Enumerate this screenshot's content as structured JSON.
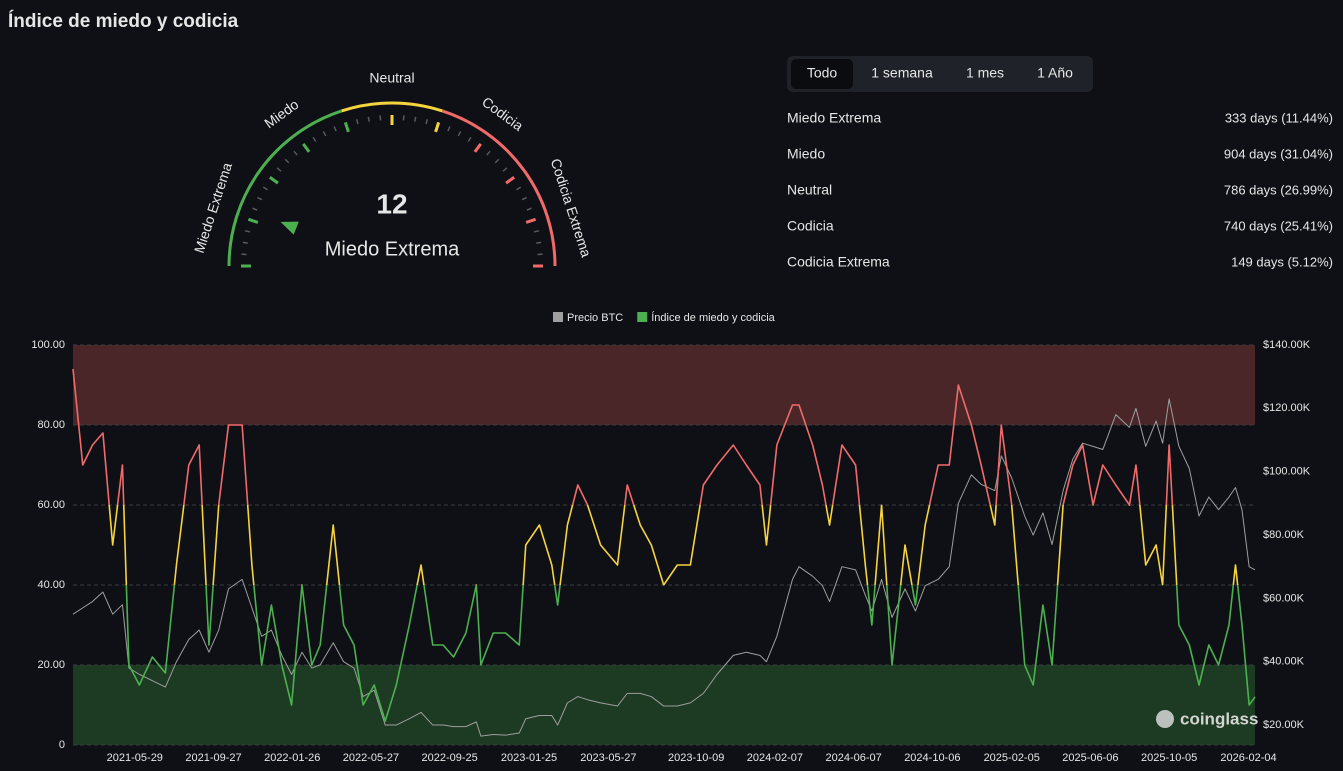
{
  "header": {
    "title": "Índice de miedo y codicia"
  },
  "gauge": {
    "value": 12,
    "label": "Miedo Extrema",
    "min": 0,
    "max": 100,
    "zones": [
      "Miedo Extrema",
      "Miedo",
      "Neutral",
      "Codicia",
      "Codicia Extrema"
    ],
    "segments": [
      {
        "to": 40,
        "color": "#4caf50"
      },
      {
        "to": 60,
        "color": "#f5d33f"
      },
      {
        "to": 100,
        "color": "#f06a6a"
      }
    ]
  },
  "tabs": [
    "Todo",
    "1 semana",
    "1 mes",
    "1 Año"
  ],
  "active_tab": 0,
  "stats": [
    {
      "name": "Miedo Extrema",
      "value": "333 days (11.44%)"
    },
    {
      "name": "Miedo",
      "value": "904 days (31.04%)"
    },
    {
      "name": "Neutral",
      "value": "786 days (26.99%)"
    },
    {
      "name": "Codicia",
      "value": "740 days (25.41%)"
    },
    {
      "name": "Codicia Extrema",
      "value": "149 days (5.12%)"
    }
  ],
  "watermark": "coinglass",
  "chart_data": {
    "type": "line",
    "legend": "top",
    "grid": true,
    "x": [
      "2021-02-23",
      "2021-03-10",
      "2021-03-25",
      "2021-04-10",
      "2021-04-25",
      "2021-05-10",
      "2021-05-20",
      "2021-06-05",
      "2021-06-25",
      "2021-07-15",
      "2021-08-01",
      "2021-08-20",
      "2021-09-05",
      "2021-09-20",
      "2021-10-05",
      "2021-10-20",
      "2021-11-10",
      "2021-11-25",
      "2021-12-10",
      "2021-12-25",
      "2022-01-10",
      "2022-01-25",
      "2022-02-10",
      "2022-02-25",
      "2022-03-10",
      "2022-03-30",
      "2022-04-15",
      "2022-05-01",
      "2022-05-15",
      "2022-06-01",
      "2022-06-18",
      "2022-07-05",
      "2022-07-25",
      "2022-08-12",
      "2022-08-30",
      "2022-09-15",
      "2022-10-01",
      "2022-10-20",
      "2022-11-05",
      "2022-11-12",
      "2022-12-01",
      "2022-12-20",
      "2023-01-10",
      "2023-01-20",
      "2023-02-10",
      "2023-03-01",
      "2023-03-10",
      "2023-03-25",
      "2023-04-10",
      "2023-04-25",
      "2023-05-15",
      "2023-06-10",
      "2023-06-25",
      "2023-07-15",
      "2023-08-01",
      "2023-08-20",
      "2023-09-10",
      "2023-09-30",
      "2023-10-20",
      "2023-11-10",
      "2023-12-05",
      "2023-12-25",
      "2024-01-15",
      "2024-01-25",
      "2024-02-10",
      "2024-03-05",
      "2024-03-15",
      "2024-04-05",
      "2024-04-20",
      "2024-05-01",
      "2024-05-20",
      "2024-06-10",
      "2024-06-25",
      "2024-07-05",
      "2024-07-20",
      "2024-08-05",
      "2024-08-25",
      "2024-09-10",
      "2024-09-25",
      "2024-10-15",
      "2024-11-01",
      "2024-11-15",
      "2024-12-05",
      "2024-12-20",
      "2025-01-10",
      "2025-01-20",
      "2025-02-05",
      "2025-02-25",
      "2025-03-10",
      "2025-03-25",
      "2025-04-08",
      "2025-04-25",
      "2025-05-10",
      "2025-05-25",
      "2025-06-10",
      "2025-06-25",
      "2025-07-15",
      "2025-08-05",
      "2025-08-15",
      "2025-08-30",
      "2025-09-15",
      "2025-09-25",
      "2025-10-05",
      "2025-10-20",
      "2025-11-05",
      "2025-11-20",
      "2025-12-05",
      "2025-12-20",
      "2026-01-05",
      "2026-01-15",
      "2026-01-25",
      "2026-02-05",
      "2026-02-14"
    ],
    "xlim": [
      "2021-02-23",
      "2026-02-14"
    ],
    "xticks": [
      "2021-05-29",
      "2021-09-27",
      "2022-01-26",
      "2022-05-27",
      "2022-09-25",
      "2023-01-25",
      "2023-05-27",
      "2023-10-09",
      "2024-02-07",
      "2024-06-07",
      "2024-10-06",
      "2025-02-05",
      "2025-06-06",
      "2025-10-05",
      "2026-02-04"
    ],
    "ylim": [
      0,
      100
    ],
    "yticks": [
      0,
      {
        "value": 20,
        "label": "20.00"
      },
      {
        "value": 40,
        "label": "40.00"
      },
      {
        "value": 60,
        "label": "60.00"
      },
      {
        "value": 80,
        "label": "80.00"
      },
      {
        "value": 100,
        "label": "100.00"
      }
    ],
    "y2lim": [
      13700,
      140000
    ],
    "y2ticks": [
      {
        "value": 20000,
        "label": "$20.00K"
      },
      {
        "value": 40000,
        "label": "$40.00K"
      },
      {
        "value": 60000,
        "label": "$60.00K"
      },
      {
        "value": 80000,
        "label": "$80.00K"
      },
      {
        "value": 100000,
        "label": "$100.00K"
      },
      {
        "value": 120000,
        "label": "$120.00K"
      },
      {
        "value": 140000,
        "label": "$140.00K"
      }
    ],
    "bands": [
      {
        "from": 80,
        "to": 100,
        "color": "#4a2629"
      },
      {
        "from": 0,
        "to": 20,
        "color": "#1d3a22"
      }
    ],
    "line_colors": [
      {
        "to": 40,
        "color": "#4caf50"
      },
      {
        "to": 60,
        "color": "#f5d33f"
      },
      {
        "to": 100,
        "color": "#f06a6a"
      }
    ],
    "series": [
      {
        "name": "Precio BTC",
        "color": "#9e9e9e",
        "axis": "y2",
        "values": [
          55000,
          57000,
          59000,
          62000,
          55000,
          58000,
          38000,
          36000,
          34000,
          32000,
          40000,
          47000,
          50000,
          43000,
          50000,
          63000,
          66000,
          57000,
          48000,
          50000,
          42000,
          36000,
          43000,
          38000,
          39000,
          46000,
          40000,
          38000,
          29000,
          31000,
          20000,
          20000,
          22000,
          24000,
          20000,
          20000,
          19500,
          19500,
          21000,
          16500,
          17000,
          16800,
          17500,
          22000,
          23000,
          23000,
          20000,
          27000,
          29000,
          28000,
          27000,
          26000,
          30000,
          30000,
          29000,
          26000,
          26000,
          27000,
          30000,
          36000,
          42000,
          43000,
          42000,
          40000,
          48000,
          66000,
          70000,
          67000,
          64000,
          59000,
          70000,
          69000,
          61000,
          56000,
          66000,
          54000,
          63000,
          56000,
          64000,
          66000,
          70000,
          90000,
          99000,
          96000,
          94000,
          105000,
          98000,
          86000,
          80000,
          87000,
          77000,
          94000,
          104000,
          109000,
          108000,
          107000,
          118000,
          114000,
          120000,
          108000,
          116000,
          109000,
          123000,
          108000,
          101000,
          86000,
          92000,
          88000,
          92000,
          95000,
          88000,
          70000,
          69000
        ]
      },
      {
        "name": "Índice de miedo y codicia",
        "color": "#4caf50",
        "values": [
          94,
          70,
          75,
          78,
          50,
          70,
          20,
          15,
          22,
          18,
          45,
          70,
          75,
          25,
          60,
          80,
          80,
          45,
          20,
          35,
          20,
          10,
          40,
          20,
          25,
          55,
          30,
          25,
          10,
          15,
          6,
          15,
          30,
          45,
          25,
          25,
          22,
          28,
          40,
          20,
          28,
          28,
          25,
          50,
          55,
          45,
          35,
          55,
          65,
          60,
          50,
          45,
          65,
          55,
          50,
          40,
          45,
          45,
          65,
          70,
          75,
          70,
          65,
          50,
          75,
          85,
          85,
          75,
          65,
          55,
          75,
          70,
          45,
          30,
          60,
          20,
          50,
          35,
          55,
          70,
          70,
          90,
          80,
          70,
          55,
          80,
          60,
          20,
          15,
          35,
          20,
          60,
          70,
          75,
          60,
          70,
          65,
          60,
          70,
          45,
          50,
          40,
          75,
          30,
          25,
          15,
          25,
          20,
          30,
          45,
          30,
          10,
          12
        ]
      }
    ]
  }
}
